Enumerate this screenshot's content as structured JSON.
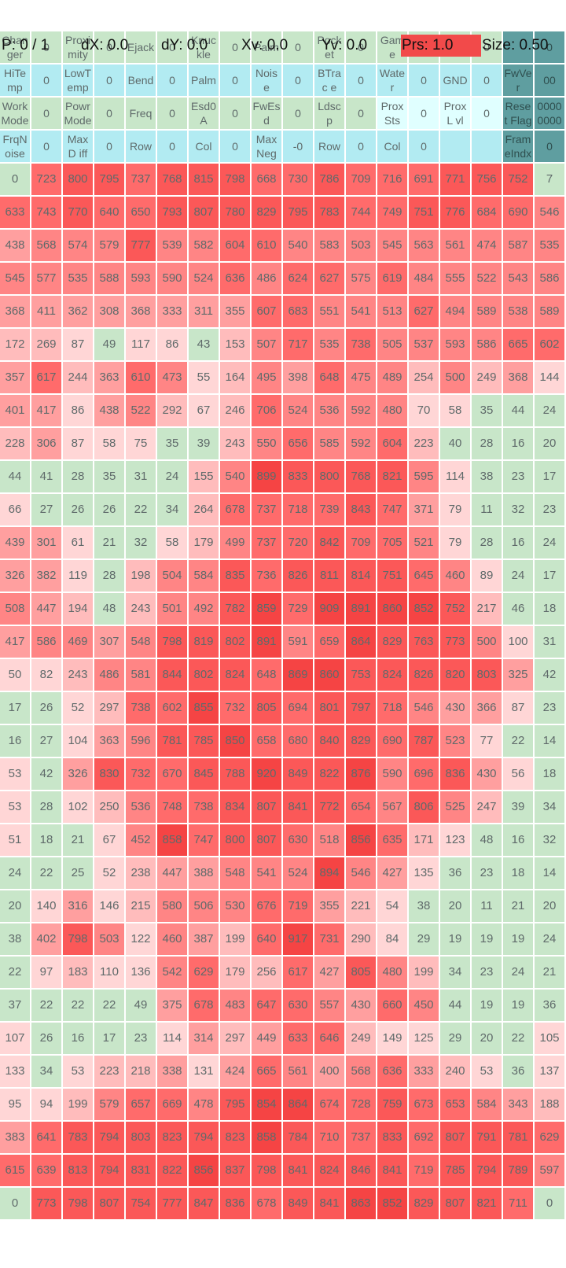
{
  "status": {
    "points": "P: 0 / 1",
    "dx": "dX: 0.0",
    "dy": "dY: 0.0",
    "xv": "Xv: 0.0",
    "yv": "Yv: 0.0",
    "prs": "Prs: 1.0",
    "size": "Size: 0.50"
  },
  "colors": {
    "label_bg": "#c8e6c9",
    "cyan_bg": "#b2ebf2",
    "very_light_cyan": "#e0ffff",
    "teal_bg": "#5f9ea0",
    "prs_bg": "#f24a4a",
    "text": "#5f6a6a"
  },
  "header_rows": [
    [
      {
        "t": "Chan ger",
        "s": "g"
      },
      {
        "t": "0",
        "s": "g"
      },
      {
        "t": "Proxi mity",
        "s": "g"
      },
      {
        "t": "0",
        "s": "g"
      },
      {
        "t": "Ejack",
        "s": "g"
      },
      {
        "t": "0",
        "s": "g"
      },
      {
        "t": "Knuc kle",
        "s": "g"
      },
      {
        "t": "0",
        "s": "g"
      },
      {
        "t": "Palm",
        "s": "g"
      },
      {
        "t": "0",
        "s": "g"
      },
      {
        "t": "Pock et",
        "s": "g"
      },
      {
        "t": "0",
        "s": "g"
      },
      {
        "t": "Gam e",
        "s": "g"
      },
      {
        "t": "0",
        "s": "g"
      },
      {
        "t": "0",
        "s": "g"
      },
      {
        "t": "0",
        "s": "g"
      },
      {
        "t": "",
        "s": "teal"
      },
      {
        "t": "0",
        "s": "teal"
      }
    ],
    [
      {
        "t": "HiTe mp",
        "s": "c"
      },
      {
        "t": "0",
        "s": "c"
      },
      {
        "t": "LowT emp",
        "s": "c"
      },
      {
        "t": "0",
        "s": "c"
      },
      {
        "t": "Bend",
        "s": "c"
      },
      {
        "t": "0",
        "s": "c"
      },
      {
        "t": "Palm",
        "s": "c"
      },
      {
        "t": "0",
        "s": "c"
      },
      {
        "t": "Nois e",
        "s": "c"
      },
      {
        "t": "0",
        "s": "c"
      },
      {
        "t": "BTrac e",
        "s": "c"
      },
      {
        "t": "0",
        "s": "c"
      },
      {
        "t": "Wate r",
        "s": "c"
      },
      {
        "t": "0",
        "s": "c"
      },
      {
        "t": "GND",
        "s": "c"
      },
      {
        "t": "0",
        "s": "c"
      },
      {
        "t": "FwVe r",
        "s": "teal"
      },
      {
        "t": "00",
        "s": "teal"
      }
    ],
    [
      {
        "t": "Work Mode",
        "s": "g"
      },
      {
        "t": "0",
        "s": "g"
      },
      {
        "t": "Powr Mode",
        "s": "g"
      },
      {
        "t": "0",
        "s": "g"
      },
      {
        "t": "Freq",
        "s": "g"
      },
      {
        "t": "0",
        "s": "g"
      },
      {
        "t": "Esd0 A",
        "s": "g"
      },
      {
        "t": "0",
        "s": "g"
      },
      {
        "t": "FwEs d",
        "s": "g"
      },
      {
        "t": "0",
        "s": "g"
      },
      {
        "t": "Ldsc p",
        "s": "g"
      },
      {
        "t": "0",
        "s": "g"
      },
      {
        "t": "Prox Sts",
        "s": "lc"
      },
      {
        "t": "0",
        "s": "lc"
      },
      {
        "t": "ProxL vl",
        "s": "lc"
      },
      {
        "t": "0",
        "s": "lc"
      },
      {
        "t": "Reset Flag",
        "s": "teal"
      },
      {
        "t": "0000 0000",
        "s": "teal"
      }
    ],
    [
      {
        "t": "FrqN oise",
        "s": "c"
      },
      {
        "t": "0",
        "s": "c"
      },
      {
        "t": "MaxD iff",
        "s": "c"
      },
      {
        "t": "0",
        "s": "c"
      },
      {
        "t": "Row",
        "s": "c"
      },
      {
        "t": "0",
        "s": "c"
      },
      {
        "t": "Col",
        "s": "c"
      },
      {
        "t": "0",
        "s": "c"
      },
      {
        "t": "Max Neg",
        "s": "c"
      },
      {
        "t": "-0",
        "s": "c"
      },
      {
        "t": "Row",
        "s": "c"
      },
      {
        "t": "0",
        "s": "c"
      },
      {
        "t": "Col",
        "s": "c"
      },
      {
        "t": "0",
        "s": "c"
      },
      {
        "t": "",
        "s": "c"
      },
      {
        "t": "",
        "s": "c"
      },
      {
        "t": "Fram eIndx",
        "s": "teal"
      },
      {
        "t": "0",
        "s": "teal"
      }
    ]
  ],
  "matrix": [
    [
      0,
      723,
      800,
      795,
      737,
      768,
      815,
      798,
      668,
      730,
      786,
      709,
      716,
      691,
      771,
      756,
      752,
      7
    ],
    [
      633,
      743,
      770,
      640,
      650,
      793,
      807,
      780,
      829,
      795,
      783,
      744,
      749,
      751,
      776,
      684,
      690,
      546
    ],
    [
      438,
      568,
      574,
      579,
      777,
      539,
      582,
      604,
      610,
      540,
      583,
      503,
      545,
      563,
      561,
      474,
      587,
      535
    ],
    [
      545,
      577,
      535,
      588,
      593,
      590,
      524,
      636,
      486,
      624,
      627,
      575,
      619,
      484,
      555,
      522,
      543,
      586
    ],
    [
      368,
      411,
      362,
      308,
      368,
      333,
      311,
      355,
      607,
      683,
      551,
      541,
      513,
      627,
      494,
      589,
      538,
      589
    ],
    [
      172,
      269,
      87,
      49,
      117,
      86,
      43,
      153,
      507,
      717,
      535,
      738,
      505,
      537,
      593,
      586,
      665,
      602
    ],
    [
      357,
      617,
      244,
      363,
      610,
      473,
      55,
      164,
      495,
      398,
      648,
      475,
      489,
      254,
      500,
      249,
      368,
      144
    ],
    [
      401,
      417,
      86,
      438,
      522,
      292,
      67,
      246,
      706,
      524,
      536,
      592,
      480,
      70,
      58,
      35,
      44,
      24
    ],
    [
      228,
      306,
      87,
      58,
      75,
      35,
      39,
      243,
      550,
      656,
      585,
      592,
      604,
      223,
      40,
      28,
      16,
      20
    ],
    [
      44,
      41,
      28,
      35,
      31,
      24,
      155,
      540,
      899,
      833,
      800,
      768,
      821,
      595,
      114,
      38,
      23,
      17
    ],
    [
      66,
      27,
      26,
      26,
      22,
      34,
      264,
      678,
      737,
      718,
      739,
      843,
      747,
      371,
      79,
      11,
      32,
      23
    ],
    [
      439,
      301,
      61,
      21,
      32,
      58,
      179,
      499,
      737,
      720,
      842,
      709,
      705,
      521,
      79,
      28,
      16,
      24
    ],
    [
      326,
      382,
      119,
      28,
      198,
      504,
      584,
      835,
      736,
      826,
      811,
      814,
      751,
      645,
      460,
      89,
      24,
      17
    ],
    [
      508,
      447,
      194,
      48,
      243,
      501,
      492,
      782,
      859,
      729,
      909,
      891,
      860,
      852,
      752,
      217,
      46,
      18
    ],
    [
      417,
      586,
      469,
      307,
      548,
      798,
      819,
      802,
      891,
      591,
      659,
      864,
      829,
      763,
      773,
      500,
      100,
      31
    ],
    [
      50,
      82,
      243,
      486,
      581,
      844,
      802,
      824,
      648,
      869,
      860,
      753,
      824,
      826,
      820,
      803,
      325,
      42
    ],
    [
      17,
      26,
      52,
      297,
      738,
      602,
      855,
      732,
      805,
      694,
      801,
      797,
      718,
      546,
      430,
      366,
      87,
      23
    ],
    [
      16,
      27,
      104,
      363,
      596,
      781,
      785,
      850,
      658,
      680,
      840,
      829,
      690,
      787,
      523,
      77,
      22,
      14
    ],
    [
      53,
      42,
      326,
      830,
      732,
      670,
      845,
      788,
      920,
      849,
      822,
      876,
      590,
      696,
      836,
      430,
      56,
      18
    ],
    [
      53,
      28,
      102,
      250,
      536,
      748,
      738,
      834,
      807,
      841,
      772,
      654,
      567,
      806,
      525,
      247,
      39,
      34
    ],
    [
      51,
      18,
      21,
      67,
      452,
      858,
      747,
      800,
      807,
      630,
      518,
      856,
      635,
      171,
      123,
      48,
      16,
      32
    ],
    [
      24,
      22,
      25,
      52,
      238,
      447,
      388,
      548,
      541,
      524,
      894,
      546,
      427,
      135,
      36,
      23,
      18,
      14
    ],
    [
      20,
      140,
      316,
      146,
      215,
      580,
      506,
      530,
      676,
      719,
      355,
      221,
      54,
      38,
      20,
      11,
      21,
      20
    ],
    [
      38,
      402,
      798,
      503,
      122,
      460,
      387,
      199,
      640,
      917,
      731,
      290,
      84,
      29,
      19,
      19,
      19,
      24
    ],
    [
      22,
      97,
      183,
      110,
      136,
      542,
      629,
      179,
      256,
      617,
      427,
      805,
      480,
      199,
      34,
      23,
      24,
      21
    ],
    [
      37,
      22,
      22,
      22,
      49,
      375,
      678,
      483,
      647,
      630,
      557,
      430,
      660,
      450,
      44,
      19,
      19,
      36
    ],
    [
      107,
      26,
      16,
      17,
      23,
      114,
      314,
      297,
      449,
      633,
      646,
      249,
      149,
      125,
      29,
      20,
      22,
      105
    ],
    [
      133,
      34,
      53,
      223,
      218,
      338,
      131,
      424,
      665,
      561,
      400,
      568,
      636,
      333,
      240,
      53,
      36,
      137
    ],
    [
      95,
      94,
      199,
      579,
      657,
      669,
      478,
      795,
      854,
      864,
      674,
      728,
      759,
      673,
      653,
      584,
      343,
      188
    ],
    [
      383,
      641,
      783,
      794,
      803,
      823,
      794,
      823,
      858,
      784,
      710,
      737,
      833,
      692,
      807,
      791,
      781,
      629
    ],
    [
      615,
      639,
      813,
      794,
      831,
      822,
      856,
      837,
      798,
      841,
      824,
      846,
      841,
      719,
      785,
      794,
      789,
      597
    ],
    [
      0,
      773,
      798,
      807,
      754,
      777,
      847,
      836,
      678,
      849,
      841,
      863,
      852,
      829,
      807,
      821,
      711,
      0
    ]
  ]
}
